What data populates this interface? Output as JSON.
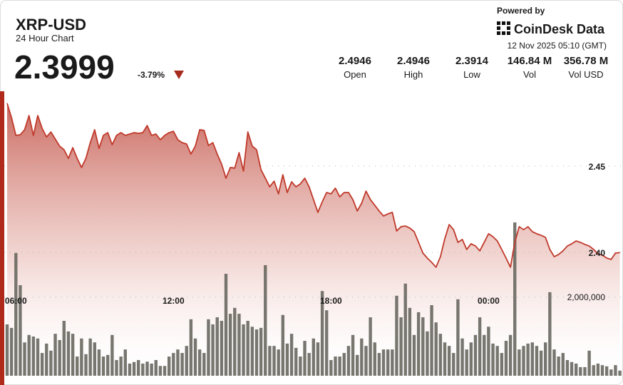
{
  "header": {
    "powered_by": "Powered by",
    "brand": "CoinDesk Data",
    "timestamp": "12 Nov 2025 05:10 (GMT)",
    "price": "2.3999",
    "change": "-3.79%",
    "stats": [
      {
        "value": "2.4946",
        "label": "Open"
      },
      {
        "value": "2.4946",
        "label": "High"
      },
      {
        "value": "2.3914",
        "label": "Low"
      },
      {
        "value": "146.84 M",
        "label": "Vol"
      },
      {
        "value": "356.78 M",
        "label": "Vol USD"
      }
    ]
  },
  "chart_data": {
    "type": "line",
    "title": "XRP-USD",
    "subtitle": "24 Hour Chart",
    "categories": [
      null,
      null,
      "06:00",
      null,
      null,
      null,
      null,
      null,
      null,
      null,
      null,
      null,
      null,
      null,
      null,
      null,
      null,
      null,
      null,
      null,
      null,
      null,
      null,
      null,
      null,
      null,
      null,
      null,
      null,
      null,
      null,
      null,
      null,
      null,
      null,
      null,
      null,
      null,
      "12:00",
      null,
      null,
      null,
      null,
      null,
      null,
      null,
      null,
      null,
      null,
      null,
      null,
      null,
      null,
      null,
      null,
      null,
      null,
      null,
      null,
      null,
      null,
      null,
      null,
      null,
      null,
      null,
      null,
      null,
      null,
      null,
      null,
      null,
      null,
      null,
      "18:00",
      null,
      null,
      null,
      null,
      null,
      null,
      null,
      null,
      null,
      null,
      null,
      null,
      null,
      null,
      null,
      null,
      null,
      null,
      null,
      null,
      null,
      null,
      null,
      null,
      null,
      null,
      null,
      null,
      null,
      null,
      null,
      null,
      null,
      null,
      null,
      "00:00",
      null,
      null,
      null,
      null,
      null,
      null,
      null,
      null,
      null,
      null,
      null,
      null,
      null,
      null,
      null,
      null,
      null,
      null,
      null,
      null,
      null,
      null,
      null,
      null,
      null,
      null,
      null,
      null,
      null,
      null
    ],
    "series": [
      {
        "color": "#c0392b",
        "values": [
          2.4864,
          2.4781,
          2.4678,
          2.4682,
          2.4711,
          2.4793,
          2.4678,
          2.4793,
          2.4719,
          2.4669,
          2.4698,
          2.4657,
          2.4616,
          2.4595,
          2.4545,
          2.4607,
          2.4545,
          2.4492,
          2.4545,
          2.4636,
          2.4711,
          2.4603,
          2.4678,
          2.4694,
          2.4624,
          2.4678,
          2.4694,
          2.4678,
          2.4686,
          2.4694,
          2.469,
          2.4694,
          2.4735,
          2.4678,
          2.4686,
          2.4653,
          2.4678,
          2.4694,
          2.4702,
          2.4653,
          2.4636,
          2.4628,
          2.457,
          2.4616,
          2.4711,
          2.4707,
          2.462,
          2.4636,
          2.457,
          2.4512,
          2.443,
          2.4492,
          2.4488,
          2.4578,
          2.4471,
          2.4698,
          2.4616,
          2.4595,
          2.4479,
          2.443,
          2.438,
          2.4413,
          2.4339,
          2.445,
          2.4347,
          2.4409,
          2.438,
          2.4397,
          2.443,
          2.438,
          2.4306,
          2.4232,
          2.4293,
          2.4347,
          2.4339,
          2.4372,
          2.4322,
          2.4347,
          2.4347,
          2.4306,
          2.424,
          2.4285,
          2.4355,
          2.4306,
          2.4273,
          2.424,
          2.4211,
          2.4223,
          2.4232,
          2.4124,
          2.4149,
          2.4153,
          2.4141,
          2.412,
          2.4058,
          2.3996,
          2.3967,
          2.3942,
          2.3914,
          2.3975,
          2.4079,
          2.4161,
          2.4132,
          2.4058,
          2.4075,
          2.4017,
          2.405,
          2.4037,
          2.4009,
          2.4058,
          2.4108,
          2.4091,
          2.4066,
          2.4017,
          2.3967,
          2.3914,
          2.4058,
          2.4149,
          2.4132,
          2.4149,
          2.412,
          2.4108,
          2.4099,
          2.4087,
          2.4017,
          2.3975,
          2.3988,
          2.4009,
          2.4037,
          2.405,
          2.4066,
          2.4058,
          2.4046,
          2.4037,
          2.4017,
          2.3992,
          2.3984,
          2.3967,
          2.3959,
          2.3996,
          2.3999
        ]
      },
      {
        "type": "bar",
        "axis": "y2",
        "color": "#6b6a63",
        "values": [
          1310000,
          1220000,
          3130000,
          2310000,
          850000,
          1040000,
          1000000,
          950000,
          580000,
          820000,
          640000,
          1070000,
          910000,
          1400000,
          1130000,
          1070000,
          490000,
          950000,
          550000,
          950000,
          850000,
          670000,
          490000,
          530000,
          1040000,
          400000,
          490000,
          670000,
          310000,
          350000,
          400000,
          310000,
          360000,
          310000,
          400000,
          250000,
          250000,
          490000,
          580000,
          670000,
          580000,
          760000,
          1440000,
          950000,
          670000,
          580000,
          1440000,
          1310000,
          1490000,
          1400000,
          2600000,
          1580000,
          1730000,
          1580000,
          1310000,
          1400000,
          1250000,
          1180000,
          1220000,
          2820000,
          760000,
          760000,
          670000,
          1550000,
          820000,
          1070000,
          710000,
          490000,
          890000,
          580000,
          950000,
          850000,
          2160000,
          1670000,
          400000,
          490000,
          490000,
          580000,
          760000,
          1040000,
          530000,
          950000,
          760000,
          1490000,
          850000,
          580000,
          670000,
          670000,
          670000,
          2040000,
          1490000,
          2350000,
          1730000,
          1040000,
          1620000,
          1490000,
          1130000,
          1800000,
          1360000,
          1070000,
          850000,
          760000,
          580000,
          1950000,
          950000,
          670000,
          850000,
          1040000,
          1490000,
          1040000,
          1250000,
          820000,
          760000,
          580000,
          890000,
          1040000,
          3910000,
          670000,
          760000,
          820000,
          850000,
          760000,
          640000,
          850000,
          2130000,
          670000,
          490000,
          580000,
          400000,
          350000,
          310000,
          220000,
          220000,
          640000,
          270000,
          310000,
          270000,
          240000,
          160000,
          270000,
          130000
        ]
      }
    ],
    "ylim": [
      2.33,
      2.5
    ],
    "yticks": [
      {
        "value": 2.4,
        "label": "2.40"
      },
      2.45
    ],
    "y2lim": [
      0,
      7500000
    ],
    "y2ticks": [
      {
        "value": 2000000,
        "label": "2,000,000"
      }
    ],
    "grid": true
  }
}
